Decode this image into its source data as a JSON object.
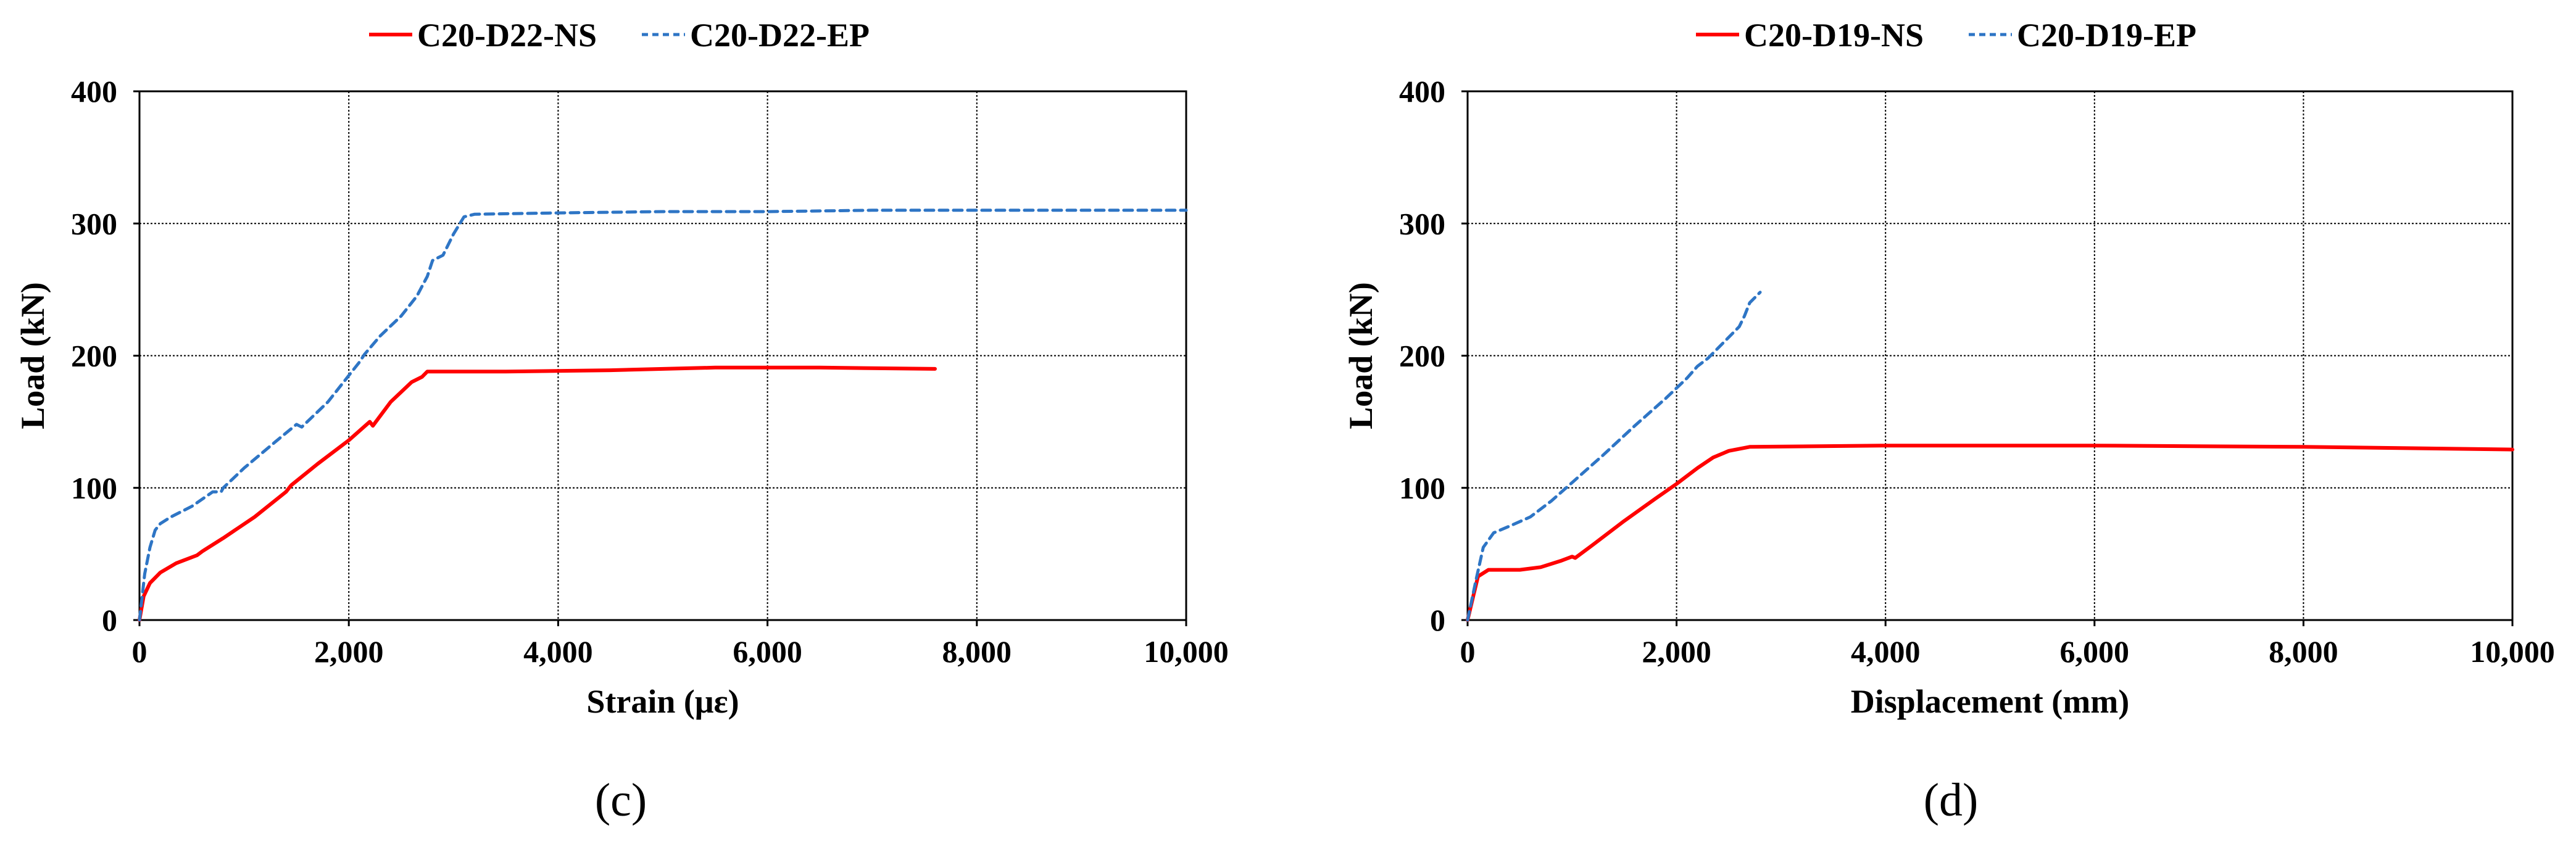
{
  "chart_data": [
    {
      "type": "line",
      "panel": "(c)",
      "xlabel": "Strain (με)",
      "ylabel": "Load (kN)",
      "xlim": [
        0,
        10000
      ],
      "ylim": [
        0,
        400
      ],
      "xticks": [
        0,
        2000,
        4000,
        6000,
        8000,
        10000
      ],
      "xtick_labels": [
        "0",
        "2,000",
        "4,000",
        "6,000",
        "8,000",
        "10,000"
      ],
      "yticks": [
        0,
        100,
        200,
        300,
        400
      ],
      "ytick_labels": [
        "0",
        "100",
        "200",
        "300",
        "400"
      ],
      "grid": true,
      "legend_position": "top",
      "series": [
        {
          "name": "C20-D22-NS",
          "color": "#ff0000",
          "dash": "solid",
          "x": [
            0,
            40,
            100,
            200,
            350,
            550,
            600,
            800,
            1100,
            1400,
            1450,
            1700,
            2000,
            2200,
            2230,
            2400,
            2600,
            2700,
            2750,
            2800,
            3500,
            4500,
            5500,
            6500,
            7600
          ],
          "y": [
            0,
            18,
            28,
            36,
            43,
            49,
            52,
            62,
            78,
            97,
            102,
            118,
            136,
            150,
            147,
            165,
            180,
            184,
            188,
            188,
            188,
            189,
            191,
            191,
            190
          ]
        },
        {
          "name": "C20-D22-EP",
          "color": "#2e75c5",
          "dash": "dashed",
          "x": [
            0,
            50,
            100,
            150,
            200,
            300,
            500,
            700,
            780,
            800,
            1000,
            1300,
            1500,
            1550,
            1800,
            2000,
            2100,
            2150,
            2300,
            2500,
            2650,
            2750,
            2800,
            2900,
            3000,
            3100,
            3200,
            4000,
            5000,
            6000,
            7000,
            8000,
            9000,
            10000
          ],
          "y": [
            0,
            35,
            55,
            68,
            73,
            78,
            86,
            97,
            97,
            100,
            115,
            135,
            148,
            146,
            165,
            185,
            195,
            201,
            215,
            230,
            245,
            260,
            272,
            276,
            292,
            305,
            307,
            308,
            309,
            309,
            310,
            310,
            310,
            310
          ]
        }
      ],
      "caption": "(c)"
    },
    {
      "type": "line",
      "panel": "(d)",
      "xlabel": "Displacement (mm)",
      "ylabel": "Load (kN)",
      "xlim": [
        0,
        10000
      ],
      "ylim": [
        0,
        400
      ],
      "xticks": [
        0,
        2000,
        4000,
        6000,
        8000,
        10000
      ],
      "xtick_labels": [
        "0",
        "2,000",
        "4,000",
        "6,000",
        "8,000",
        "10,000"
      ],
      "yticks": [
        0,
        100,
        200,
        300,
        400
      ],
      "ytick_labels": [
        "0",
        "100",
        "200",
        "300",
        "400"
      ],
      "grid": true,
      "legend_position": "top",
      "series": [
        {
          "name": "C20-D19-NS",
          "color": "#ff0000",
          "dash": "solid",
          "x": [
            0,
            60,
            100,
            200,
            350,
            500,
            700,
            900,
            1000,
            1030,
            1200,
            1500,
            1800,
            2000,
            2200,
            2350,
            2500,
            2700,
            4000,
            6000,
            8000,
            10000
          ],
          "y": [
            0,
            20,
            33,
            38,
            38,
            38,
            40,
            45,
            48,
            47,
            57,
            75,
            92,
            103,
            115,
            123,
            128,
            131,
            132,
            132,
            131,
            129
          ],
          "x_note": "x values in mm"
        },
        {
          "name": "C20-D19-EP",
          "color": "#2e75c5",
          "dash": "dashed",
          "x": [
            0,
            80,
            150,
            250,
            400,
            600,
            800,
            1000,
            1300,
            1600,
            1900,
            2100,
            2200,
            2300,
            2450,
            2600,
            2650,
            2700,
            2800
          ],
          "y": [
            0,
            30,
            55,
            66,
            71,
            78,
            90,
            104,
            125,
            147,
            168,
            183,
            192,
            198,
            210,
            222,
            230,
            240,
            248
          ]
        }
      ],
      "caption": "(d)"
    }
  ]
}
